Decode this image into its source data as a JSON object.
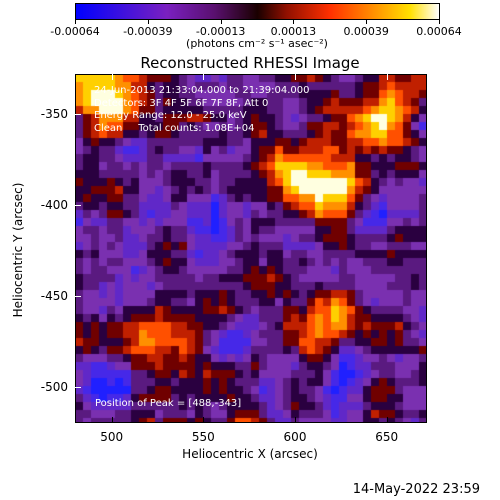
{
  "colorbar": {
    "tick_labels": [
      "-0.00064",
      "-0.00039",
      "-0.00013",
      "0.00013",
      "0.00039",
      "0.00064"
    ],
    "units": "(photons cm⁻² s⁻¹ asec⁻²)"
  },
  "title": "Reconstructed RHESSI Image",
  "info": {
    "time_range": "24-Jun-2013 21:33:04.000 to 21:39:04.000",
    "detectors": "Detectors: 3F 4F 5F 6F 7F 8F, Att 0",
    "energy_range": "Energy Range: 12.0 - 25.0 keV",
    "algorithm": "Clean     Total counts: 1.08E+04"
  },
  "peak_text": "Position of Peak = [488,-343]",
  "x_axis": {
    "label": "Heliocentric X (arcsec)",
    "ticks": [
      "500",
      "550",
      "600",
      "650"
    ]
  },
  "y_axis": {
    "label": "Heliocentric Y (arcsec)",
    "ticks": [
      "-350",
      "-400",
      "-450",
      "-500"
    ]
  },
  "footer": "14-May-2022 23:59",
  "chart_data": {
    "type": "heatmap",
    "title": "Reconstructed RHESSI Image",
    "xlabel": "Heliocentric X (arcsec)",
    "ylabel": "Heliocentric Y (arcsec)",
    "xlim": [
      480,
      672
    ],
    "ylim": [
      -520,
      -328
    ],
    "value_range": [
      -0.00064,
      0.00064
    ],
    "colormap": [
      "#2020ff",
      "#5a30d8",
      "#7a30b0",
      "#3a0050",
      "#c02000",
      "#ff5000",
      "#ffb000",
      "#ffffff"
    ],
    "peak": [
      488,
      -343
    ]
  }
}
